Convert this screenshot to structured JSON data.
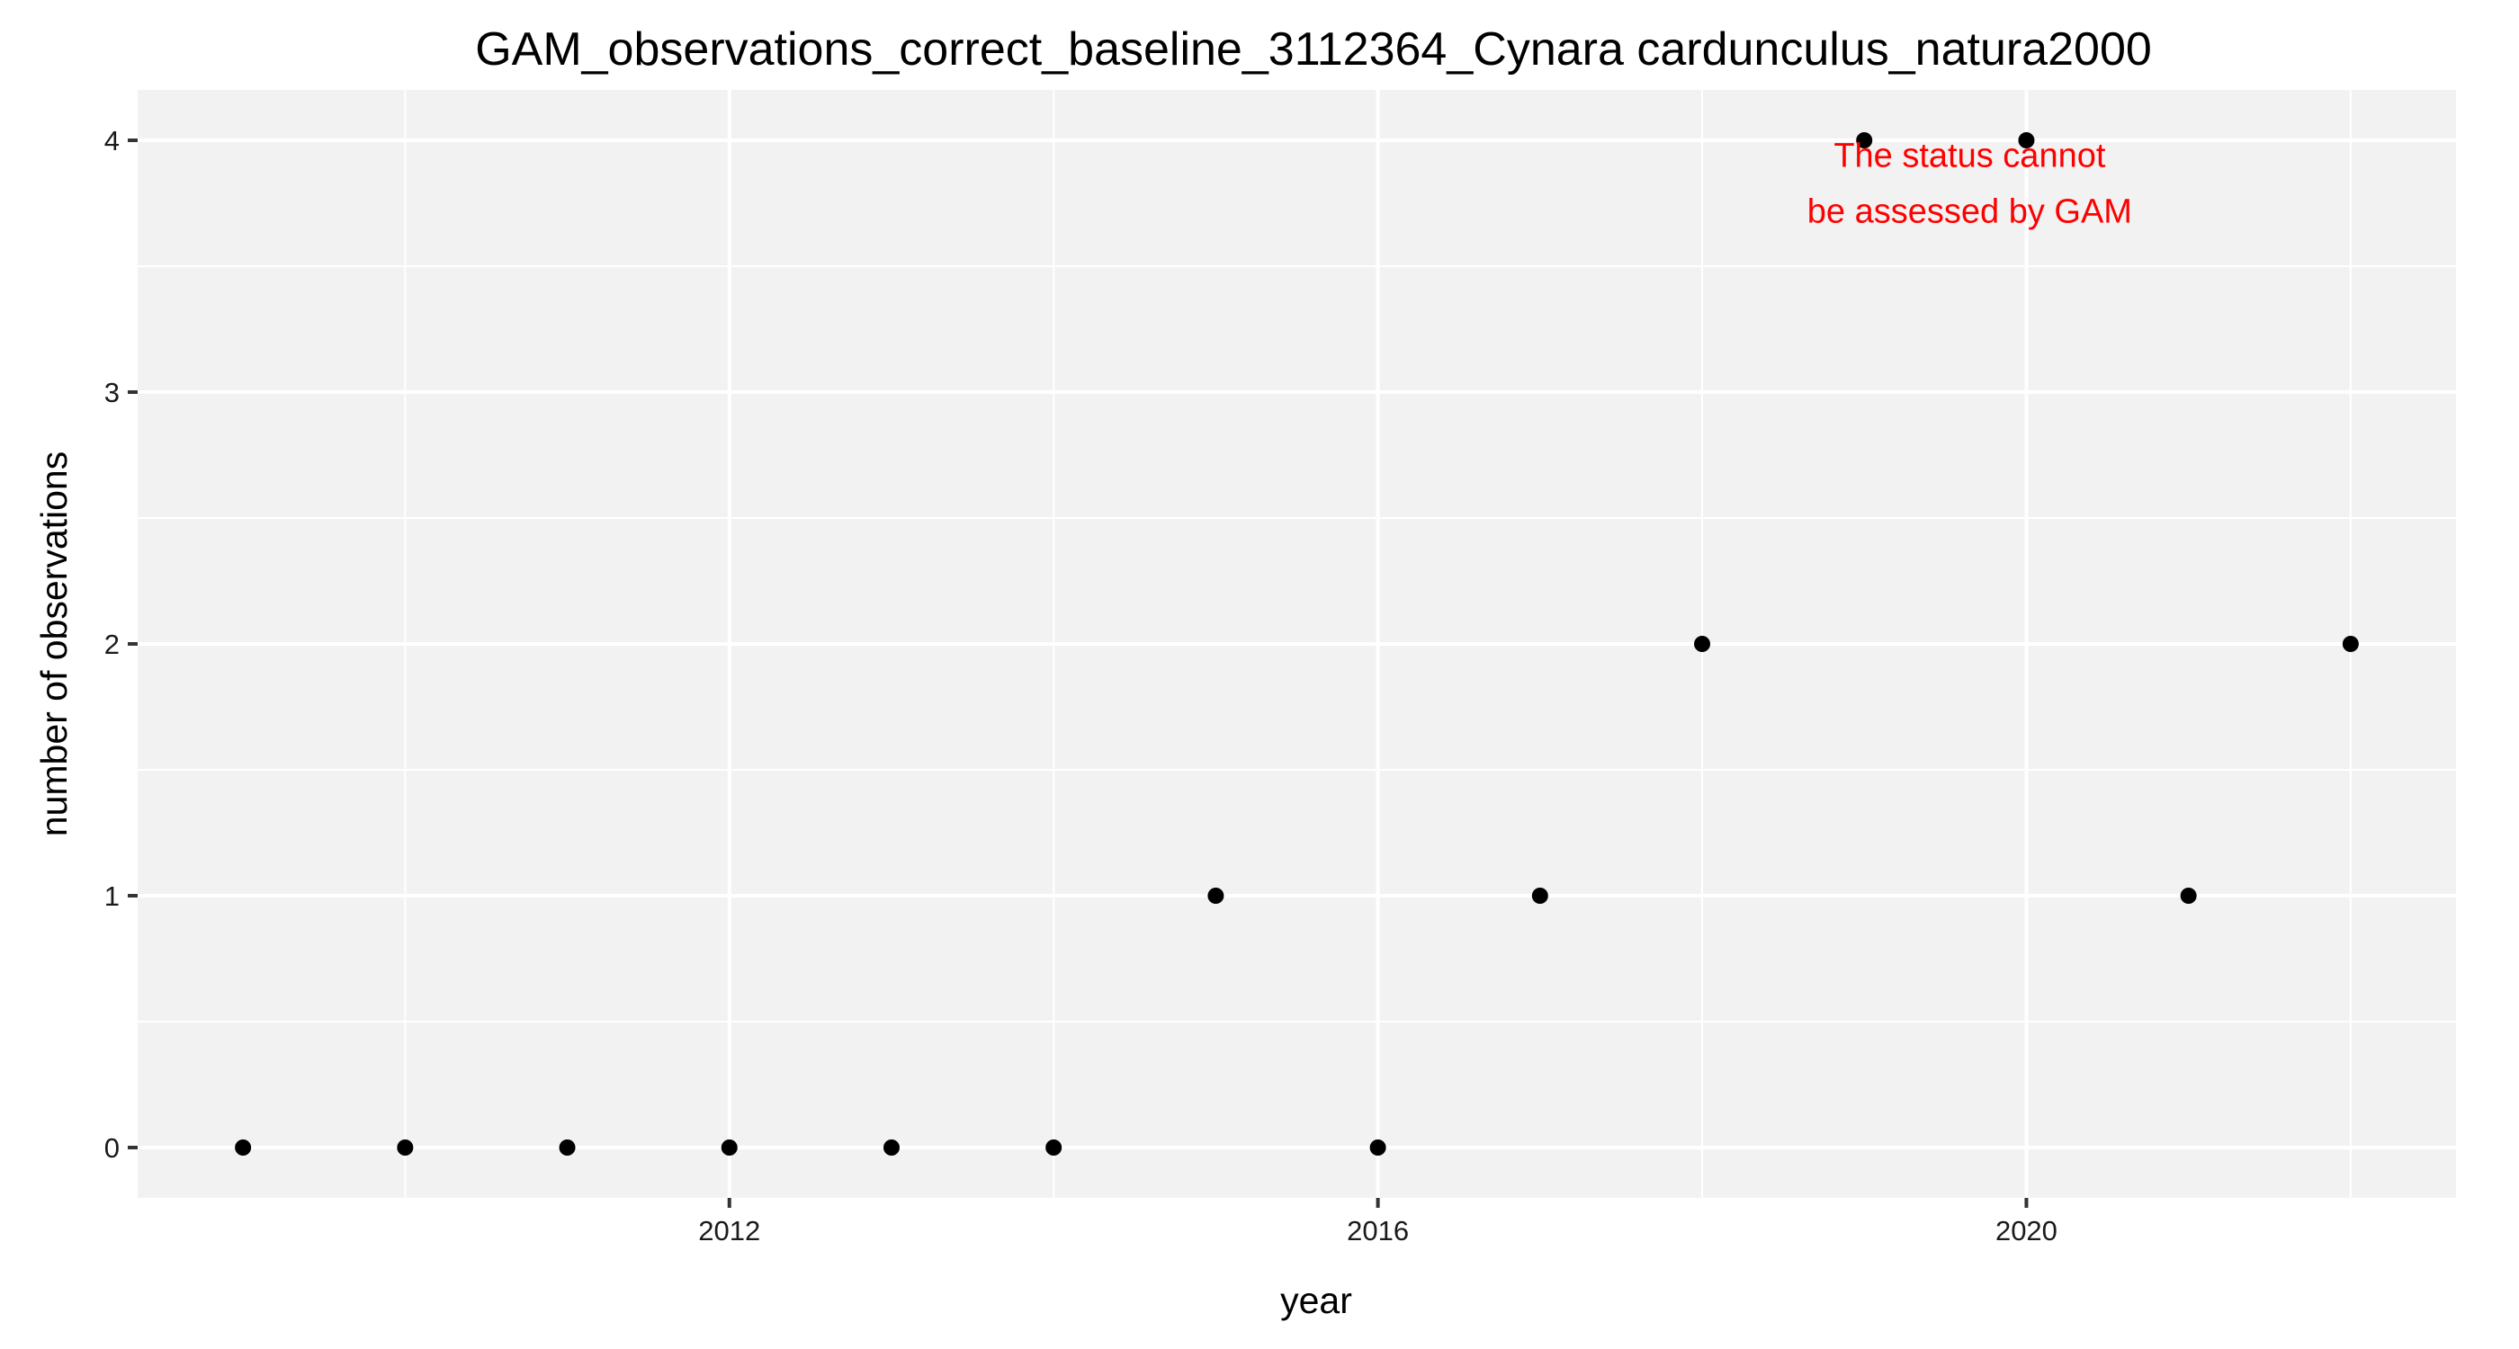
{
  "chart_data": {
    "type": "scatter",
    "title": "GAM_observations_correct_baseline_3112364_Cynara cardunculus_natura2000",
    "xlabel": "year",
    "ylabel": "number of observations",
    "x": [
      2009,
      2010,
      2011,
      2012,
      2013,
      2014,
      2015,
      2016,
      2017,
      2018,
      2019,
      2020,
      2021,
      2022
    ],
    "y": [
      0,
      0,
      0,
      0,
      0,
      0,
      1,
      0,
      1,
      2,
      4,
      4,
      1,
      2
    ],
    "xlim": [
      2008.35,
      2022.65
    ],
    "ylim": [
      -0.2,
      4.2
    ],
    "x_ticks": [
      2012,
      2016,
      2020
    ],
    "x_minor_ticks": [
      2010,
      2014,
      2018,
      2022
    ],
    "y_ticks": [
      0,
      1,
      2,
      3,
      4
    ],
    "y_minor_ticks": [
      0.5,
      1.5,
      2.5,
      3.5
    ],
    "grid": true,
    "legend": "none",
    "annotation": {
      "lines": [
        "The status cannot",
        "be assessed by GAM"
      ],
      "x": 2019.65,
      "y": 3.83,
      "color": "#ff0000"
    },
    "colors": {
      "panel_background": "#f2f2f2",
      "grid": "#ffffff",
      "point": "#000000",
      "tick": "#333333"
    }
  }
}
